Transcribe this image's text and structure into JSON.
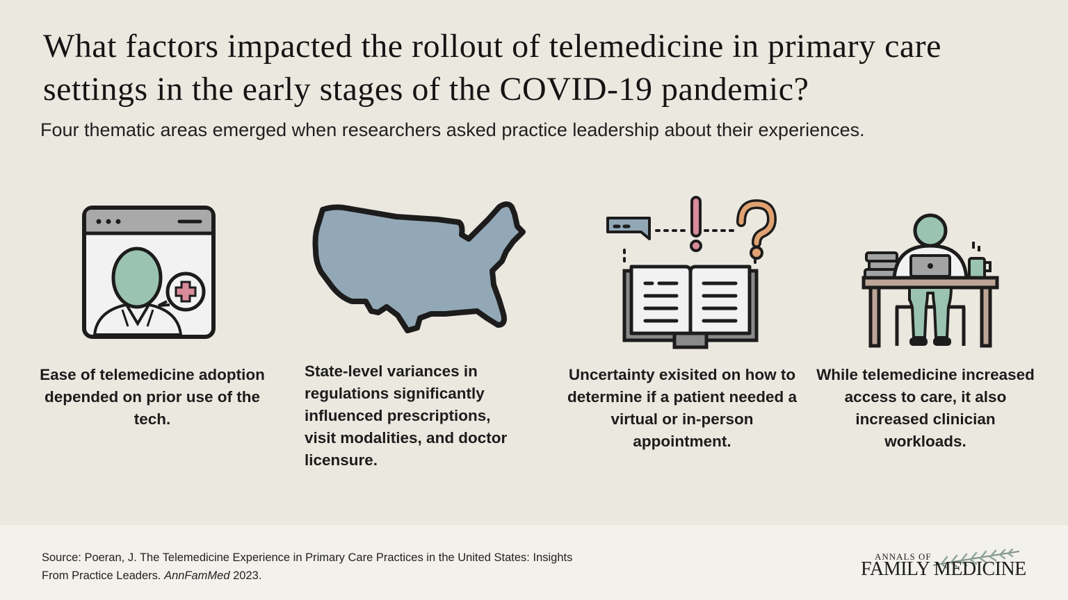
{
  "heading": {
    "title": "What factors impacted the rollout of telemedicine in primary care settings in the early stages of the COVID-19 pandemic?",
    "subtitle": "Four thematic areas emerged when researchers asked practice leadership about their experiences."
  },
  "themes": [
    {
      "icon": "video-call-doctor-icon",
      "text": "Ease of telemedicine adoption depended on prior use of the tech."
    },
    {
      "icon": "usa-map-icon",
      "text": "State-level variances in regulations significantly influenced prescriptions, visit modalities, and doctor licensure."
    },
    {
      "icon": "book-question-icon",
      "text": "Uncertainty exisited on how to determine if a patient needed a virtual or in-person appointment."
    },
    {
      "icon": "clinician-desk-icon",
      "text": "While telemedicine increased access to care, it also increased clinician workloads."
    }
  ],
  "footer": {
    "source_prefix": "Source:  Poeran, J. The Telemedicine Experience in Primary Care Practices in the United States: Insights From Practice Leaders. ",
    "source_journal": "AnnFamMed",
    "source_year": " 2023.",
    "logo_small": "ANNALS OF",
    "logo_big": "FAMILY MEDICINE"
  },
  "colors": {
    "background": "#ebe8df",
    "footer": "#f3f1ec",
    "icon_green": "#9bc3b2",
    "icon_blue": "#93a8b6",
    "accent_pink": "#d98b9a",
    "accent_orange": "#e0a272",
    "outline": "#1c1c1c"
  }
}
